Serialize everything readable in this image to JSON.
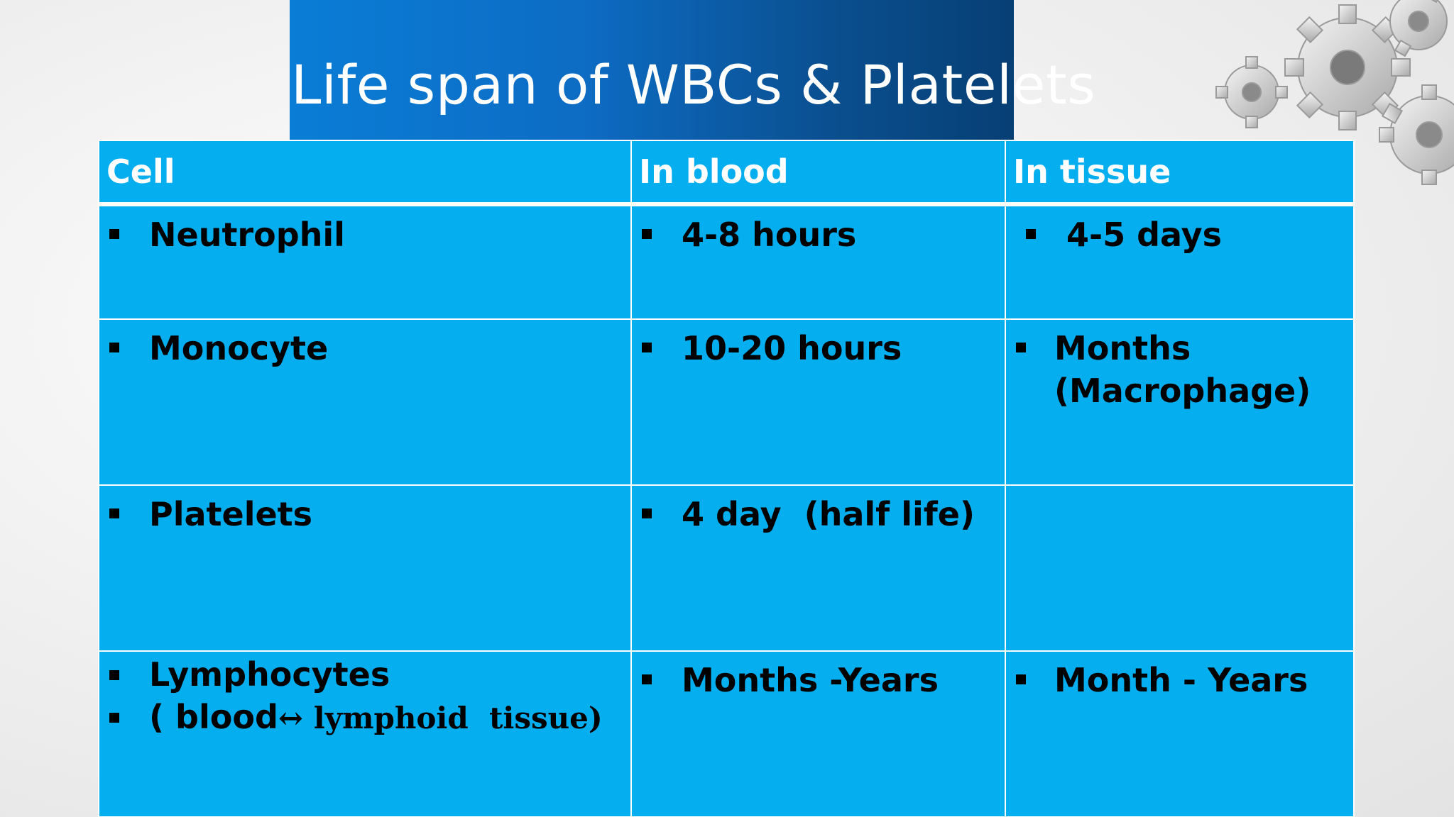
{
  "slide": {
    "title": "Life span of WBCs & Platelets"
  },
  "table": {
    "headers": {
      "cell": "Cell",
      "blood": "In blood",
      "tissue": "In tissue"
    },
    "rows": [
      {
        "cell": [
          "Neutrophil"
        ],
        "blood": "4-8 hours",
        "tissue": "4-5 days"
      },
      {
        "cell": [
          "Monocyte"
        ],
        "blood": "10-20 hours",
        "tissue": "Months (Macrophage)"
      },
      {
        "cell": [
          "Platelets"
        ],
        "blood": "4 day  (half life)",
        "tissue": ""
      },
      {
        "cell": [
          "Lymphocytes",
          "( blood",
          "↔ ",
          "lymphoid  tissue)"
        ],
        "blood": "Months -Years",
        "tissue": "Month - Years"
      }
    ]
  },
  "colors": {
    "banner_start": "#0a7dd6",
    "banner_end": "#073f74",
    "table_fill": "#05aeef",
    "grid_lines": "#ffffff"
  },
  "decor": {
    "corner_image": "gears-icon"
  }
}
